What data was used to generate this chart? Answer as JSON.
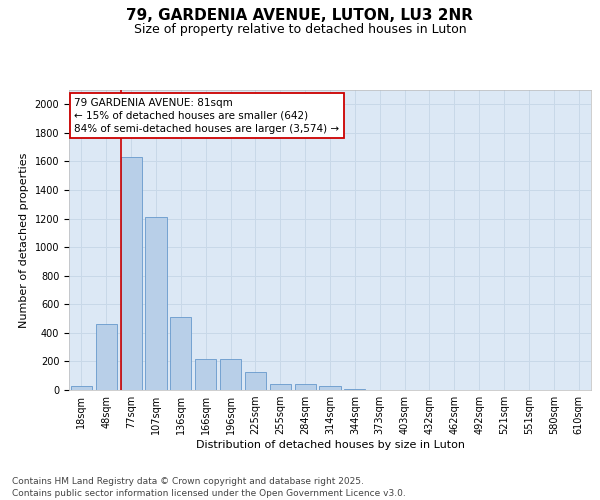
{
  "title_line1": "79, GARDENIA AVENUE, LUTON, LU3 2NR",
  "title_line2": "Size of property relative to detached houses in Luton",
  "xlabel": "Distribution of detached houses by size in Luton",
  "ylabel": "Number of detached properties",
  "categories": [
    "18sqm",
    "48sqm",
    "77sqm",
    "107sqm",
    "136sqm",
    "166sqm",
    "196sqm",
    "225sqm",
    "255sqm",
    "284sqm",
    "314sqm",
    "344sqm",
    "373sqm",
    "403sqm",
    "432sqm",
    "462sqm",
    "492sqm",
    "521sqm",
    "551sqm",
    "580sqm",
    "610sqm"
  ],
  "values": [
    30,
    460,
    1630,
    1210,
    510,
    215,
    215,
    125,
    45,
    40,
    25,
    10,
    0,
    0,
    0,
    0,
    0,
    0,
    0,
    0,
    0
  ],
  "bar_color": "#b8cfe8",
  "bar_edgecolor": "#6699cc",
  "vline_color": "#cc0000",
  "annotation_text": "79 GARDENIA AVENUE: 81sqm\n← 15% of detached houses are smaller (642)\n84% of semi-detached houses are larger (3,574) →",
  "annotation_box_facecolor": "#ffffff",
  "annotation_box_edgecolor": "#cc0000",
  "ylim": [
    0,
    2100
  ],
  "yticks": [
    0,
    200,
    400,
    600,
    800,
    1000,
    1200,
    1400,
    1600,
    1800,
    2000
  ],
  "grid_color": "#c8d8e8",
  "bg_color": "#dce8f5",
  "footer_line1": "Contains HM Land Registry data © Crown copyright and database right 2025.",
  "footer_line2": "Contains public sector information licensed under the Open Government Licence v3.0.",
  "title_fontsize": 11,
  "subtitle_fontsize": 9,
  "axis_fontsize": 8,
  "tick_fontsize": 7,
  "footer_fontsize": 6.5,
  "annot_fontsize": 7.5
}
